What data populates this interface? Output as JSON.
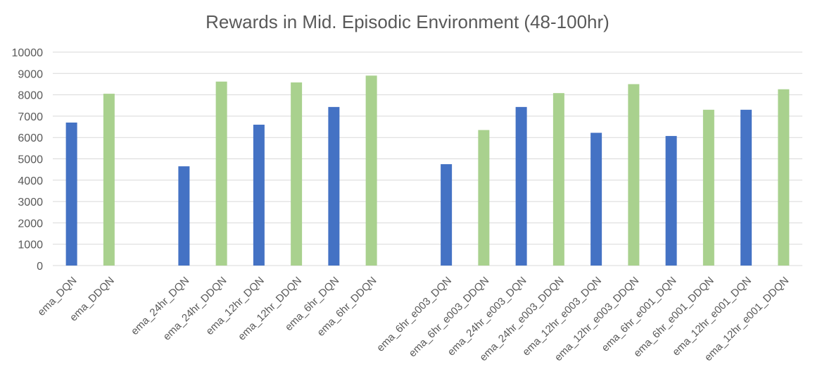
{
  "chart_data": {
    "type": "bar",
    "title": "Rewards in Mid. Episodic Environment (48-100hr)",
    "xlabel": "",
    "ylabel": "",
    "ylim": [
      0,
      10000
    ],
    "yticks": [
      0,
      1000,
      2000,
      3000,
      4000,
      5000,
      6000,
      7000,
      8000,
      9000,
      10000
    ],
    "grid": true,
    "colors": {
      "dqn": "#4472c4",
      "ddqn": "#a9d18e",
      "grid": "#d9d9d9",
      "text": "#595959"
    },
    "categories": [
      "ema_DQN",
      "ema_DDQN",
      "",
      "ema_24hr_DQN",
      "ema_24hr_DDQN",
      "ema_12hr_DQN",
      "ema_12hr_DDQN",
      "ema_6hr_DQN",
      "ema_6hr_DDQN",
      "",
      "ema_6hr_e003_DQN",
      "ema_6hr_e003_DDQN",
      "ema_24hr_e003_DQN",
      "ema_24hr_e003_DDQN",
      "ema_12hr_e003_DQN",
      "ema_12hr_e003_DDQN",
      "ema_6hr_e001_DQN",
      "ema_6hr_e001_DDQN",
      "ema_12hr_e001_DQN",
      "ema_12hr_e001_DDQN"
    ],
    "values": [
      6700,
      8050,
      null,
      4650,
      8620,
      6600,
      8580,
      7430,
      8900,
      null,
      4750,
      6350,
      7430,
      8080,
      6220,
      8500,
      6070,
      7300,
      7300,
      8260
    ],
    "bar_colors": [
      "dqn",
      "ddqn",
      "",
      "dqn",
      "ddqn",
      "dqn",
      "ddqn",
      "dqn",
      "ddqn",
      "",
      "dqn",
      "ddqn",
      "dqn",
      "ddqn",
      "dqn",
      "ddqn",
      "dqn",
      "ddqn",
      "dqn",
      "ddqn"
    ]
  }
}
